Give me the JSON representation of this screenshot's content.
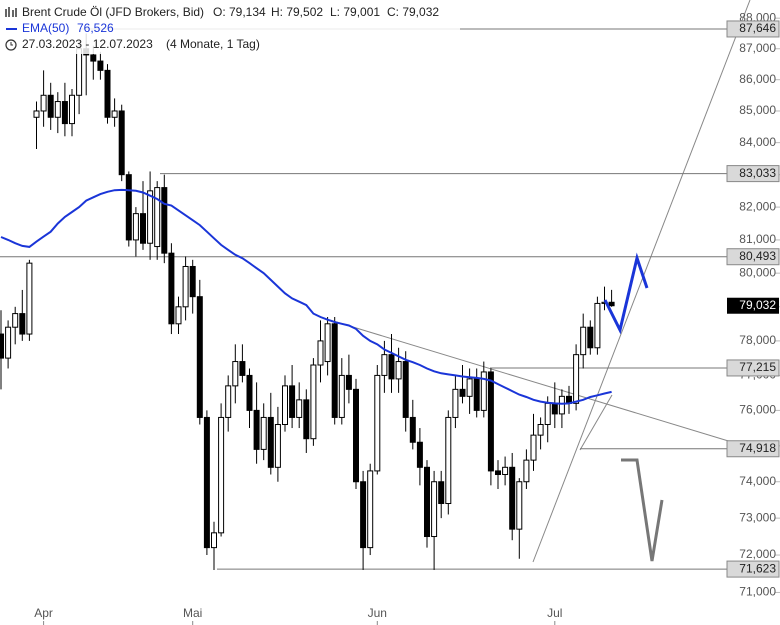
{
  "chart_data": {
    "type": "candlestick",
    "header": {
      "title": "Brent Crude Öl (JFD Brokers, Bid)",
      "ohlc": [
        "O: 79,134",
        "H: 79,502",
        "L: 79,001",
        "C: 79,032"
      ],
      "ema_label": "EMA(50)",
      "ema_value": "76,526",
      "range": "27.03.2023 - 12.07.2023",
      "duration": "(4 Monate, 1 Tag)"
    },
    "log": true,
    "ylim": [
      70.8,
      88.6
    ],
    "yticks": [
      {
        "value": 71,
        "label": "71,000"
      },
      {
        "value": 72,
        "label": "72,000"
      },
      {
        "value": 73,
        "label": "73,000"
      },
      {
        "value": 74,
        "label": "74,000"
      },
      {
        "value": 75,
        "label": "75,000"
      },
      {
        "value": 76,
        "label": "76,000"
      },
      {
        "value": 77,
        "label": "77,000"
      },
      {
        "value": 78,
        "label": "78,000"
      },
      {
        "value": 79,
        "label": "79,000"
      },
      {
        "value": 80,
        "label": "80,000"
      },
      {
        "value": 81,
        "label": "81,000"
      },
      {
        "value": 82,
        "label": "82,000"
      },
      {
        "value": 83,
        "label": "83,000"
      },
      {
        "value": 84,
        "label": "84,000"
      },
      {
        "value": 85,
        "label": "85,000"
      },
      {
        "value": 86,
        "label": "86,000"
      },
      {
        "value": 87,
        "label": "87,000"
      },
      {
        "value": 88,
        "label": "88,000"
      }
    ],
    "categories": [
      null,
      null,
      null,
      null,
      null,
      null,
      "Apr",
      null,
      null,
      null,
      null,
      null,
      null,
      null,
      null,
      null,
      null,
      null,
      null,
      null,
      null,
      null,
      null,
      null,
      null,
      null,
      null,
      "Mai",
      null,
      null,
      null,
      null,
      null,
      null,
      null,
      null,
      null,
      null,
      null,
      null,
      null,
      null,
      null,
      null,
      null,
      null,
      null,
      null,
      null,
      null,
      null,
      null,
      null,
      "Jun",
      null,
      null,
      null,
      null,
      null,
      null,
      null,
      null,
      null,
      null,
      null,
      null,
      null,
      null,
      null,
      null,
      null,
      null,
      null,
      null,
      null,
      null,
      null,
      null,
      "Jul",
      null,
      null,
      null,
      null,
      null,
      null,
      null,
      null
    ],
    "open": [
      78.2,
      77.5,
      78.4,
      78.8,
      78.2,
      84.8,
      85.0,
      85.5,
      84.8,
      85.3,
      84.6,
      85.5,
      87.0,
      86.8,
      86.6,
      86.3,
      84.8,
      85.0,
      83.0,
      81.0,
      81.8,
      80.9,
      80.8,
      82.6,
      80.6,
      78.5,
      79.0,
      80.2,
      79.3,
      75.8,
      72.2,
      72.6,
      75.8,
      76.7,
      77.4,
      77.0,
      76.0,
      74.9,
      75.8,
      74.4,
      75.6,
      76.7,
      75.8,
      76.3,
      75.2,
      77.3,
      77.4,
      78.5,
      75.8,
      77.0,
      76.6,
      74.0,
      72.2,
      74.3,
      77.0,
      77.6,
      76.9,
      77.4,
      75.8,
      75.1,
      74.4,
      72.5,
      74.0,
      73.4,
      75.8,
      76.6,
      76.4,
      76.9,
      76.0,
      77.1,
      74.3,
      74.2,
      74.4,
      72.7,
      74.0,
      74.6,
      75.3,
      75.6,
      76.2,
      75.9,
      76.4,
      76.2,
      77.6,
      78.4,
      77.8,
      79.1,
      79.134
    ],
    "high": [
      78.9,
      78.6,
      79.0,
      79.5,
      80.4,
      85.3,
      86.3,
      85.9,
      85.6,
      85.9,
      85.7,
      87.3,
      87.5,
      87.1,
      86.9,
      86.5,
      85.4,
      85.2,
      83.1,
      82.0,
      82.8,
      83.1,
      82.8,
      83.0,
      80.9,
      79.3,
      80.5,
      80.4,
      79.8,
      76.0,
      72.9,
      76.2,
      77.0,
      77.9,
      77.9,
      77.2,
      76.8,
      76.2,
      76.5,
      76.1,
      77.0,
      77.3,
      76.8,
      76.6,
      77.5,
      78.6,
      78.7,
      78.7,
      77.5,
      77.6,
      76.9,
      74.3,
      74.5,
      77.3,
      78.0,
      78.2,
      77.8,
      77.7,
      76.3,
      75.5,
      74.6,
      74.3,
      74.3,
      76.0,
      77.0,
      77.3,
      77.2,
      77.2,
      77.4,
      77.2,
      74.6,
      74.7,
      74.8,
      74.1,
      74.9,
      75.9,
      75.8,
      76.4,
      76.8,
      76.6,
      76.7,
      77.9,
      78.8,
      78.6,
      79.3,
      79.6,
      79.502
    ],
    "low": [
      76.6,
      77.2,
      77.9,
      78.0,
      78.0,
      83.8,
      84.5,
      84.4,
      84.3,
      84.2,
      84.2,
      84.9,
      85.5,
      86.0,
      86.0,
      84.6,
      84.5,
      82.8,
      80.8,
      80.5,
      80.7,
      80.4,
      80.4,
      80.3,
      78.2,
      78.2,
      78.6,
      78.8,
      75.6,
      72.0,
      71.6,
      72.5,
      75.4,
      76.2,
      76.8,
      75.5,
      74.5,
      74.6,
      74.2,
      74.0,
      75.4,
      75.5,
      75.5,
      74.8,
      75.0,
      76.8,
      77.0,
      75.6,
      75.6,
      76.2,
      73.8,
      71.6,
      72.0,
      74.2,
      76.5,
      76.5,
      76.5,
      75.4,
      74.9,
      73.9,
      72.2,
      71.6,
      73.0,
      73.1,
      75.5,
      76.2,
      75.9,
      75.8,
      75.8,
      73.9,
      73.8,
      73.9,
      72.4,
      71.9,
      73.8,
      74.3,
      74.9,
      75.1,
      75.5,
      75.5,
      75.9,
      76.0,
      77.2,
      77.6,
      77.6,
      78.9,
      79.001
    ],
    "close": [
      77.5,
      78.4,
      78.8,
      78.2,
      80.3,
      85.0,
      85.5,
      84.8,
      85.3,
      84.6,
      85.5,
      87.0,
      86.8,
      86.6,
      86.3,
      84.8,
      85.0,
      83.0,
      81.0,
      81.8,
      80.9,
      82.5,
      82.6,
      80.6,
      78.5,
      79.0,
      80.2,
      79.3,
      75.8,
      72.2,
      72.6,
      75.8,
      76.7,
      77.4,
      77.0,
      76.0,
      74.9,
      75.8,
      74.4,
      75.6,
      76.7,
      75.8,
      76.3,
      75.2,
      77.3,
      78.0,
      78.5,
      75.8,
      77.0,
      76.6,
      74.0,
      72.2,
      74.3,
      77.0,
      77.6,
      76.9,
      77.4,
      75.8,
      75.1,
      74.4,
      72.5,
      74.0,
      73.4,
      75.8,
      76.6,
      76.4,
      76.9,
      76.0,
      77.1,
      74.3,
      74.2,
      74.4,
      72.7,
      74.0,
      74.6,
      75.3,
      75.6,
      76.2,
      75.9,
      76.4,
      76.2,
      77.6,
      78.4,
      77.8,
      79.1,
      79.134,
      79.032
    ],
    "series": [
      {
        "name": "EMA(50)",
        "color": "#1a35d8",
        "values": [
          81.09,
          81.0,
          80.9,
          80.82,
          80.79,
          80.95,
          81.1,
          81.25,
          81.5,
          81.7,
          81.85,
          82.0,
          82.2,
          82.3,
          82.4,
          82.47,
          82.52,
          82.53,
          82.52,
          82.5,
          82.45,
          82.35,
          82.25,
          82.1,
          82.05,
          81.9,
          81.75,
          81.6,
          81.45,
          81.25,
          81.05,
          80.85,
          80.7,
          80.55,
          80.45,
          80.3,
          80.15,
          80.0,
          79.8,
          79.6,
          79.4,
          79.25,
          79.15,
          79.05,
          78.8,
          78.7,
          78.62,
          78.55,
          78.5,
          78.45,
          78.35,
          78.15,
          78.0,
          77.9,
          77.75,
          77.65,
          77.55,
          77.45,
          77.38,
          77.3,
          77.2,
          77.12,
          77.06,
          77.03,
          77.0,
          76.97,
          76.95,
          76.93,
          76.9,
          76.85,
          76.75,
          76.65,
          76.55,
          76.45,
          76.38,
          76.3,
          76.25,
          76.22,
          76.2,
          76.19,
          76.2,
          76.25,
          76.3,
          76.38,
          76.43,
          76.48,
          76.526
        ]
      }
    ],
    "levels": [
      {
        "value": 87.646,
        "label": "87,646"
      },
      {
        "value": 83.033,
        "label": "83,033"
      },
      {
        "value": 80.493,
        "label": "80,493"
      },
      {
        "value": 77.215,
        "label": "77,215"
      },
      {
        "value": 74.918,
        "label": "74,918"
      },
      {
        "value": 71.623,
        "label": "71,623"
      }
    ],
    "last_price": {
      "value": 79.032,
      "label": "79,032"
    }
  }
}
